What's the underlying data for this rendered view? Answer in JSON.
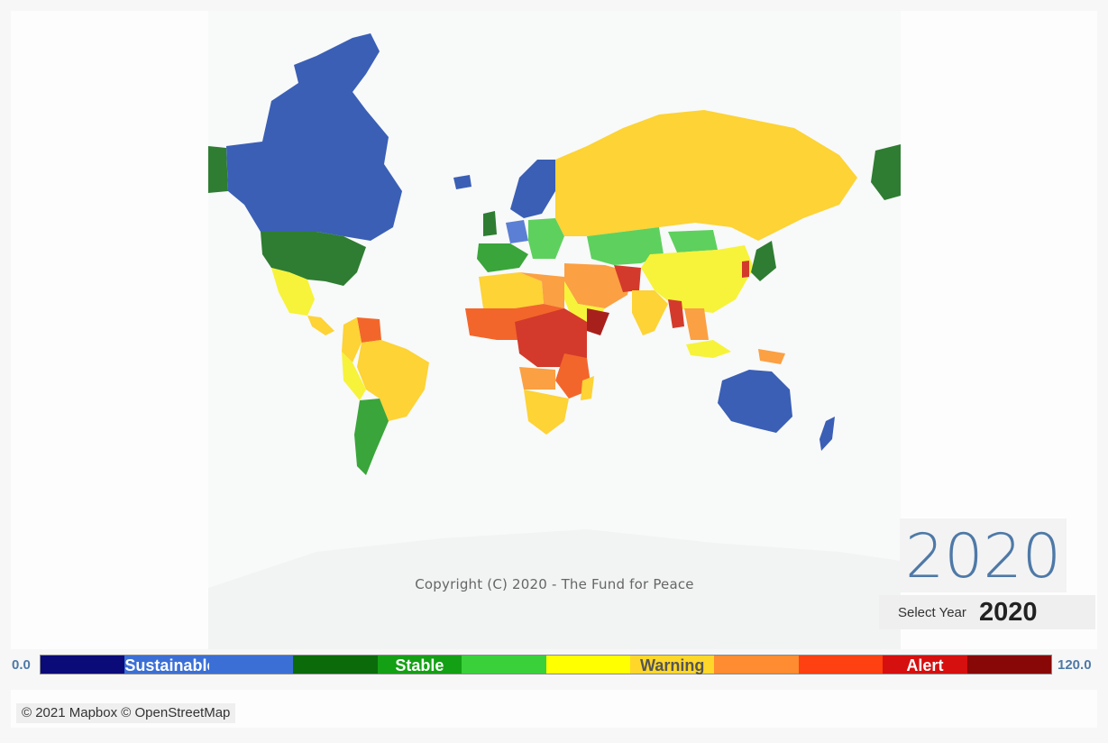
{
  "map": {
    "copyright": "Copyright (C) 2020 - The Fund for Peace",
    "colors": {
      "ocean": "#f8f9f9",
      "very_sustainable": "#3a5fb5",
      "sustainable": "#5b7fd4",
      "very_stable": "#2e7d32",
      "stable": "#3aa53a",
      "more_stable": "#5ed05e",
      "warning_low": "#f6f33a",
      "warning": "#fdd335",
      "elevated_warning": "#fba043",
      "alert": "#f3662b",
      "high_alert": "#d33a2b",
      "very_high_alert": "#a8201c"
    }
  },
  "year": {
    "display": "2020",
    "select_label": "Select Year",
    "select_value": "2020"
  },
  "scale": {
    "min": "0.0",
    "max": "120.0",
    "segments": [
      {
        "color": "#0a0a78",
        "label": "",
        "text_color": "#ffffff"
      },
      {
        "color": "#3b6fd6",
        "label": "Sustainable",
        "text_color": "#ffffff"
      },
      {
        "color": "#3b6fd6",
        "label": "",
        "text_color": "#ffffff"
      },
      {
        "color": "#0b6b0b",
        "label": "",
        "text_color": "#ffffff"
      },
      {
        "color": "#14a014",
        "label": "Stable",
        "text_color": "#ffffff"
      },
      {
        "color": "#3ad03a",
        "label": "",
        "text_color": "#ffffff"
      },
      {
        "color": "#ffff00",
        "label": "",
        "text_color": "#333333"
      },
      {
        "color": "#ffd72a",
        "label": "Warning",
        "text_color": "#555555"
      },
      {
        "color": "#ff8c30",
        "label": "",
        "text_color": "#ffffff"
      },
      {
        "color": "#ff4010",
        "label": "",
        "text_color": "#ffffff"
      },
      {
        "color": "#d60f0f",
        "label": "Alert",
        "text_color": "#ffffff"
      },
      {
        "color": "#880808",
        "label": "",
        "text_color": "#ffffff"
      }
    ]
  },
  "attribution": "© 2021 Mapbox © OpenStreetMap"
}
